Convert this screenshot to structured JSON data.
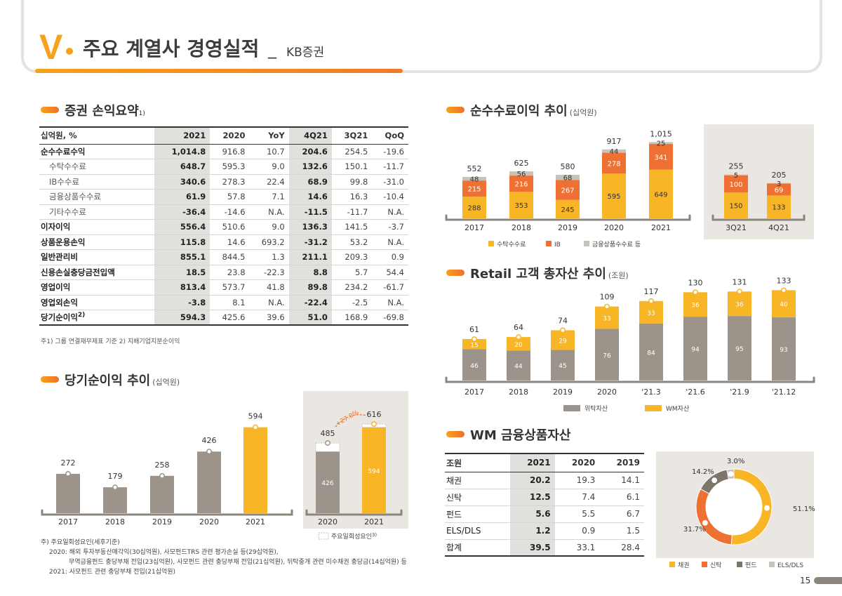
{
  "header": {
    "section_number": "V",
    "title": "주요 계열사 경영실적",
    "separator": "_",
    "subtitle": "KB증권"
  },
  "sections": {
    "pl": {
      "title": "증권 손익요약",
      "sup": "1)"
    },
    "net_income": {
      "title": "당기순이익 추이",
      "unit": "(십억원)"
    },
    "fee": {
      "title": "순수수료이익 추이",
      "unit": "(십억원)"
    },
    "retail": {
      "title": "Retail 고객 총자산 추이",
      "unit": "(조원)"
    },
    "wm": {
      "title": "WM 금융상품자산"
    }
  },
  "pl_table": {
    "headers": [
      "십억원, %",
      "2021",
      "2020",
      "YoY",
      "4Q21",
      "3Q21",
      "QoQ"
    ],
    "rows": [
      {
        "label": "순수수료수익",
        "vals": [
          "1,014.8",
          "916.8",
          "10.7",
          "204.6",
          "254.5",
          "-19.6"
        ]
      },
      {
        "label": "수탁수수료",
        "vals": [
          "648.7",
          "595.3",
          "9.0",
          "132.6",
          "150.1",
          "-11.7"
        ]
      },
      {
        "label": "IB수수료",
        "vals": [
          "340.6",
          "278.3",
          "22.4",
          "68.9",
          "99.8",
          "-31.0"
        ]
      },
      {
        "label": "금융상품수수료",
        "vals": [
          "61.9",
          "57.8",
          "7.1",
          "14.6",
          "16.3",
          "-10.4"
        ]
      },
      {
        "label": "기타수수료",
        "vals": [
          "-36.4",
          "-14.6",
          "N.A.",
          "-11.5",
          "-11.7",
          "N.A."
        ]
      },
      {
        "label": "이자이익",
        "vals": [
          "556.4",
          "510.6",
          "9.0",
          "136.3",
          "141.5",
          "-3.7"
        ]
      },
      {
        "label": "상품운용손익",
        "vals": [
          "115.8",
          "14.6",
          "693.2",
          "-31.2",
          "53.2",
          "N.A."
        ]
      },
      {
        "label": "일반관리비",
        "vals": [
          "855.1",
          "844.5",
          "1.3",
          "211.1",
          "209.3",
          "0.9"
        ]
      },
      {
        "label": "신용손실충당금전입액",
        "vals": [
          "18.5",
          "23.8",
          "-22.3",
          "8.8",
          "5.7",
          "54.4"
        ]
      },
      {
        "label": "영업이익",
        "vals": [
          "813.4",
          "573.7",
          "41.8",
          "89.8",
          "234.2",
          "-61.7"
        ]
      },
      {
        "label": "영업외손익",
        "vals": [
          "-3.8",
          "8.1",
          "N.A.",
          "-22.4",
          "-2.5",
          "N.A."
        ]
      },
      {
        "label": "당기순이익",
        "sup": "2)",
        "vals": [
          "594.3",
          "425.6",
          "39.6",
          "51.0",
          "168.9",
          "-69.8"
        ]
      }
    ],
    "footnote": "주1) 그룹 연결재무제표 기준   2) 지배기업지분순이익"
  },
  "wm_table": {
    "headers": [
      "조원",
      "2021",
      "2020",
      "2019"
    ],
    "rows": [
      {
        "label": "채권",
        "vals": [
          "20.2",
          "19.3",
          "14.1"
        ]
      },
      {
        "label": "신탁",
        "vals": [
          "12.5",
          "7.4",
          "6.1"
        ]
      },
      {
        "label": "펀드",
        "vals": [
          "5.6",
          "5.5",
          "6.7"
        ]
      },
      {
        "label": "ELS/DLS",
        "vals": [
          "1.2",
          "0.9",
          "1.5"
        ]
      },
      {
        "label": "합계",
        "vals": [
          "39.5",
          "33.1",
          "28.4"
        ]
      }
    ]
  },
  "chart_data": [
    {
      "id": "net_income",
      "type": "bar",
      "categories": [
        "2017",
        "2018",
        "2019",
        "2020",
        "2021"
      ],
      "values": [
        272,
        179,
        258,
        426,
        594
      ],
      "value_labels": [
        "272",
        "179",
        "258",
        "426",
        "594"
      ],
      "colors": [
        "#9c948a",
        "#9c948a",
        "#9c948a",
        "#9c948a",
        "#f8b526"
      ]
    },
    {
      "id": "net_income_adj",
      "type": "bar",
      "categories": [
        "2020",
        "2021"
      ],
      "series": [
        {
          "name": "",
          "values": [
            426,
            594
          ]
        },
        {
          "name": "주요일회성요인",
          "sup": "3)",
          "values": [
            59,
            22
          ]
        }
      ],
      "inner_labels": [
        "426",
        "594"
      ],
      "totals": [
        "485",
        "616"
      ],
      "growth_label": "+27.0%",
      "legend": "주요일회성요인"
    },
    {
      "id": "fee",
      "type": "bar",
      "categories": [
        "2017",
        "2018",
        "2019",
        "2020",
        "2021"
      ],
      "series": [
        {
          "name": "수탁수수료",
          "values": [
            288,
            353,
            245,
            595,
            649
          ]
        },
        {
          "name": "IB",
          "values": [
            215,
            216,
            267,
            278,
            341
          ]
        },
        {
          "name": "금융상품수수료 등",
          "values": [
            48,
            56,
            68,
            44,
            25
          ]
        }
      ],
      "totals": [
        "552",
        "625",
        "580",
        "917",
        "1,015"
      ],
      "colors": [
        "#f8b526",
        "#ee7133",
        "#c8c2ba"
      ]
    },
    {
      "id": "fee_quarter",
      "type": "bar",
      "categories": [
        "3Q21",
        "4Q21"
      ],
      "series": [
        {
          "name": "수탁수수료",
          "values": [
            150,
            133
          ]
        },
        {
          "name": "IB",
          "values": [
            100,
            69
          ]
        },
        {
          "name": "금융상품수수료 등",
          "values": [
            5,
            3
          ]
        }
      ],
      "totals": [
        "255",
        "205"
      ]
    },
    {
      "id": "retail",
      "type": "bar",
      "categories": [
        "2017",
        "2018",
        "2019",
        "2020",
        "'21.3",
        "'21.6",
        "'21.9",
        "'21.12"
      ],
      "series": [
        {
          "name": "위탁자산",
          "values": [
            46,
            44,
            45,
            76,
            84,
            94,
            95,
            93
          ]
        },
        {
          "name": "WM자산",
          "values": [
            15,
            20,
            29,
            33,
            33,
            36,
            36,
            40
          ]
        }
      ],
      "totals": [
        "61",
        "64",
        "74",
        "109",
        "117",
        "130",
        "131",
        "133"
      ],
      "colors": [
        "#9c948a",
        "#f8b526"
      ]
    },
    {
      "id": "wm_donut",
      "type": "pie",
      "categories": [
        "채권",
        "신탁",
        "펀드",
        "ELS/DLS"
      ],
      "values": [
        51.1,
        31.7,
        14.2,
        3.0
      ],
      "labels": [
        "51.1%",
        "31.7%",
        "14.2%",
        "3.0%"
      ],
      "colors": [
        "#f8b526",
        "#ee7133",
        "#7d746b",
        "#c8c2ba"
      ]
    }
  ],
  "notes": {
    "title": "주) 주요일회성요인(세후기준)",
    "lines": [
      "2020: 해외 투자부동산매각익(30십억원), 사모펀드TRS 관련 평가손실 등(29십억원),",
      "무역금융펀드 충당부채 전입(23십억원), 사모펀드 관련 충당부채 전입(21십억원), 뒤탁중개 관련 미수채권 충당금(14십억원) 등",
      "2021: 사모펀드 관련 충당부채 전입(21십억원)"
    ]
  },
  "page_number": "15"
}
